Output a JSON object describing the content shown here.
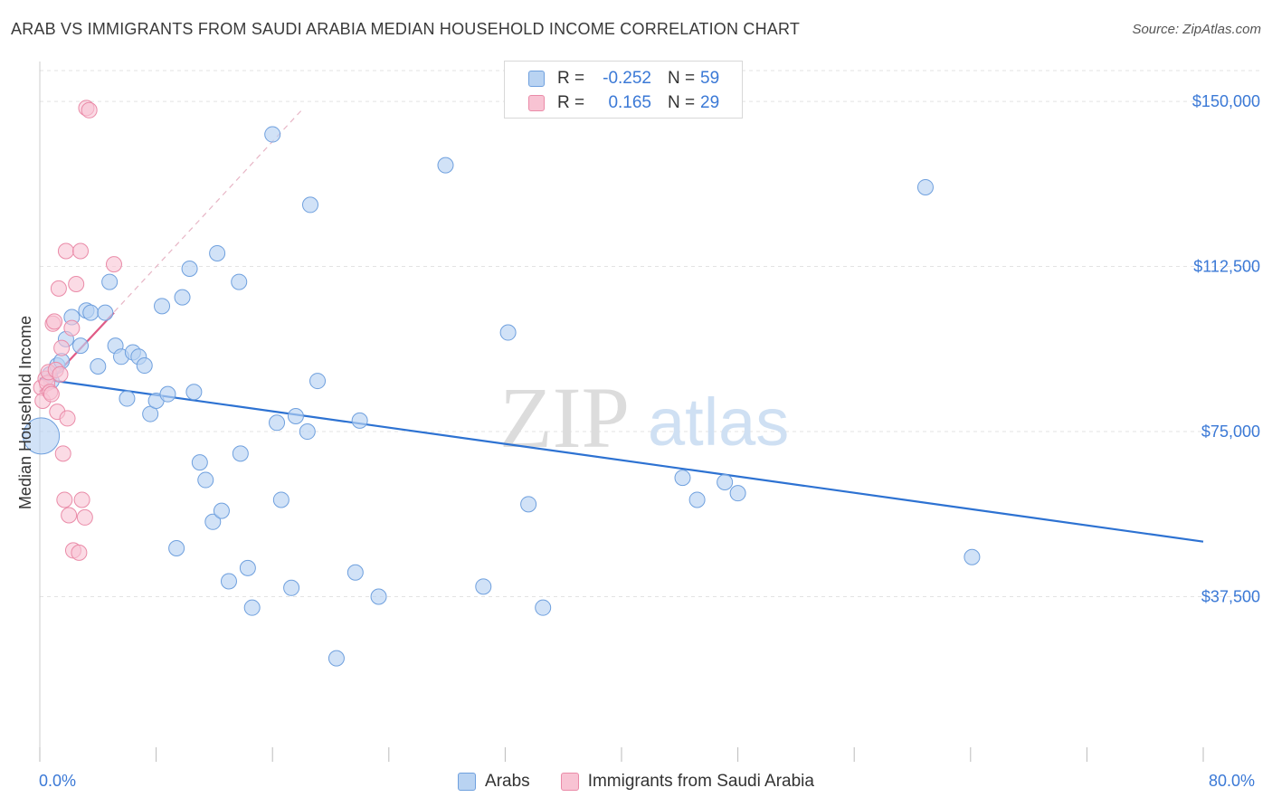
{
  "title": "ARAB VS IMMIGRANTS FROM SAUDI ARABIA MEDIAN HOUSEHOLD INCOME CORRELATION CHART",
  "source": "Source: ZipAtlas.com",
  "watermark": {
    "zip": "ZIP",
    "atlas": "atlas"
  },
  "legend": {
    "rows": [
      {
        "r_label": "R =",
        "r_value": "-0.252",
        "n_label": "N =",
        "n_value": "59"
      },
      {
        "r_label": "R =",
        "r_value": "0.165",
        "n_label": "N =",
        "n_value": "29"
      }
    ]
  },
  "bottom_legend": [
    "Arabs",
    "Immigrants from Saudi Arabia"
  ],
  "x_labels": {
    "min": "0.0%",
    "max": "80.0%"
  },
  "colors": {
    "blue_fill": "#b9d3f2",
    "blue_stroke": "#6fa0de",
    "blue_line": "#2d72d2",
    "pink_fill": "#f8c3d3",
    "pink_stroke": "#ea8ba8",
    "pink_line": "#e05a85",
    "tick_text": "#3b79d6",
    "grid": "#e3e3e3"
  },
  "chart_data": {
    "type": "scatter",
    "xlabel": "",
    "ylabel": "Median Household Income",
    "xlim": [
      0,
      0.8
    ],
    "ylim": [
      0,
      157000
    ],
    "y_ticks": [
      {
        "value": 37500,
        "label": "$37,500"
      },
      {
        "value": 75000,
        "label": "$75,000"
      },
      {
        "value": 112500,
        "label": "$112,500"
      },
      {
        "value": 150000,
        "label": "$150,000"
      }
    ],
    "grid": true,
    "series": [
      {
        "name": "Arabs",
        "r": -0.252,
        "n": 59,
        "trend": {
          "x": [
            0.0,
            0.8
          ],
          "y": [
            87000,
            50000
          ]
        },
        "points": [
          {
            "x": 0.001,
            "y": 74000,
            "big": true
          },
          {
            "x": 0.007,
            "y": 88000
          },
          {
            "x": 0.008,
            "y": 86500
          },
          {
            "x": 0.012,
            "y": 90000
          },
          {
            "x": 0.015,
            "y": 91000
          },
          {
            "x": 0.018,
            "y": 96000
          },
          {
            "x": 0.022,
            "y": 101000
          },
          {
            "x": 0.028,
            "y": 94500
          },
          {
            "x": 0.032,
            "y": 102500
          },
          {
            "x": 0.035,
            "y": 102000
          },
          {
            "x": 0.04,
            "y": 89800
          },
          {
            "x": 0.045,
            "y": 102000
          },
          {
            "x": 0.048,
            "y": 109000
          },
          {
            "x": 0.052,
            "y": 94500
          },
          {
            "x": 0.056,
            "y": 92000
          },
          {
            "x": 0.06,
            "y": 82500
          },
          {
            "x": 0.064,
            "y": 93000
          },
          {
            "x": 0.068,
            "y": 92000
          },
          {
            "x": 0.072,
            "y": 90000
          },
          {
            "x": 0.076,
            "y": 79000
          },
          {
            "x": 0.08,
            "y": 82000
          },
          {
            "x": 0.084,
            "y": 103500
          },
          {
            "x": 0.088,
            "y": 83500
          },
          {
            "x": 0.094,
            "y": 48500
          },
          {
            "x": 0.098,
            "y": 105500
          },
          {
            "x": 0.103,
            "y": 112000
          },
          {
            "x": 0.106,
            "y": 84000
          },
          {
            "x": 0.11,
            "y": 68000
          },
          {
            "x": 0.114,
            "y": 64000
          },
          {
            "x": 0.119,
            "y": 54500
          },
          {
            "x": 0.122,
            "y": 115500
          },
          {
            "x": 0.125,
            "y": 57000
          },
          {
            "x": 0.13,
            "y": 41000
          },
          {
            "x": 0.137,
            "y": 109000
          },
          {
            "x": 0.138,
            "y": 70000
          },
          {
            "x": 0.143,
            "y": 44000
          },
          {
            "x": 0.146,
            "y": 35000
          },
          {
            "x": 0.16,
            "y": 142500
          },
          {
            "x": 0.163,
            "y": 77000
          },
          {
            "x": 0.166,
            "y": 59500
          },
          {
            "x": 0.173,
            "y": 39500
          },
          {
            "x": 0.176,
            "y": 78500
          },
          {
            "x": 0.184,
            "y": 75000
          },
          {
            "x": 0.186,
            "y": 126500
          },
          {
            "x": 0.191,
            "y": 86500
          },
          {
            "x": 0.204,
            "y": 23500
          },
          {
            "x": 0.217,
            "y": 43000
          },
          {
            "x": 0.22,
            "y": 77500
          },
          {
            "x": 0.233,
            "y": 37500
          },
          {
            "x": 0.279,
            "y": 135500
          },
          {
            "x": 0.305,
            "y": 39800
          },
          {
            "x": 0.322,
            "y": 97500
          },
          {
            "x": 0.336,
            "y": 58500
          },
          {
            "x": 0.346,
            "y": 35000
          },
          {
            "x": 0.442,
            "y": 64500
          },
          {
            "x": 0.452,
            "y": 59500
          },
          {
            "x": 0.471,
            "y": 63500
          },
          {
            "x": 0.48,
            "y": 61000
          },
          {
            "x": 0.609,
            "y": 130500
          },
          {
            "x": 0.641,
            "y": 46500
          }
        ]
      },
      {
        "name": "Immigrants from Saudi Arabia",
        "r": 0.165,
        "n": 29,
        "trend": {
          "x": [
            0.0,
            0.051
          ],
          "y": [
            84000,
            102000
          ]
        },
        "trend_dashed": {
          "x": [
            0.0,
            0.18
          ],
          "y": [
            84000,
            148000
          ]
        },
        "points": [
          {
            "x": 0.001,
            "y": 85000
          },
          {
            "x": 0.002,
            "y": 82000
          },
          {
            "x": 0.004,
            "y": 87000
          },
          {
            "x": 0.005,
            "y": 86000
          },
          {
            "x": 0.006,
            "y": 88500
          },
          {
            "x": 0.007,
            "y": 84000
          },
          {
            "x": 0.008,
            "y": 83500
          },
          {
            "x": 0.009,
            "y": 99500
          },
          {
            "x": 0.01,
            "y": 100000
          },
          {
            "x": 0.011,
            "y": 89000
          },
          {
            "x": 0.012,
            "y": 79500
          },
          {
            "x": 0.013,
            "y": 107500
          },
          {
            "x": 0.014,
            "y": 88000
          },
          {
            "x": 0.015,
            "y": 94000
          },
          {
            "x": 0.016,
            "y": 70000
          },
          {
            "x": 0.017,
            "y": 59500
          },
          {
            "x": 0.018,
            "y": 116000
          },
          {
            "x": 0.019,
            "y": 78000
          },
          {
            "x": 0.02,
            "y": 56000
          },
          {
            "x": 0.022,
            "y": 98500
          },
          {
            "x": 0.023,
            "y": 48000
          },
          {
            "x": 0.025,
            "y": 108500
          },
          {
            "x": 0.027,
            "y": 47500
          },
          {
            "x": 0.028,
            "y": 116000
          },
          {
            "x": 0.029,
            "y": 59500
          },
          {
            "x": 0.031,
            "y": 55500
          },
          {
            "x": 0.032,
            "y": 148500
          },
          {
            "x": 0.034,
            "y": 148000
          },
          {
            "x": 0.051,
            "y": 113000
          }
        ]
      }
    ]
  }
}
